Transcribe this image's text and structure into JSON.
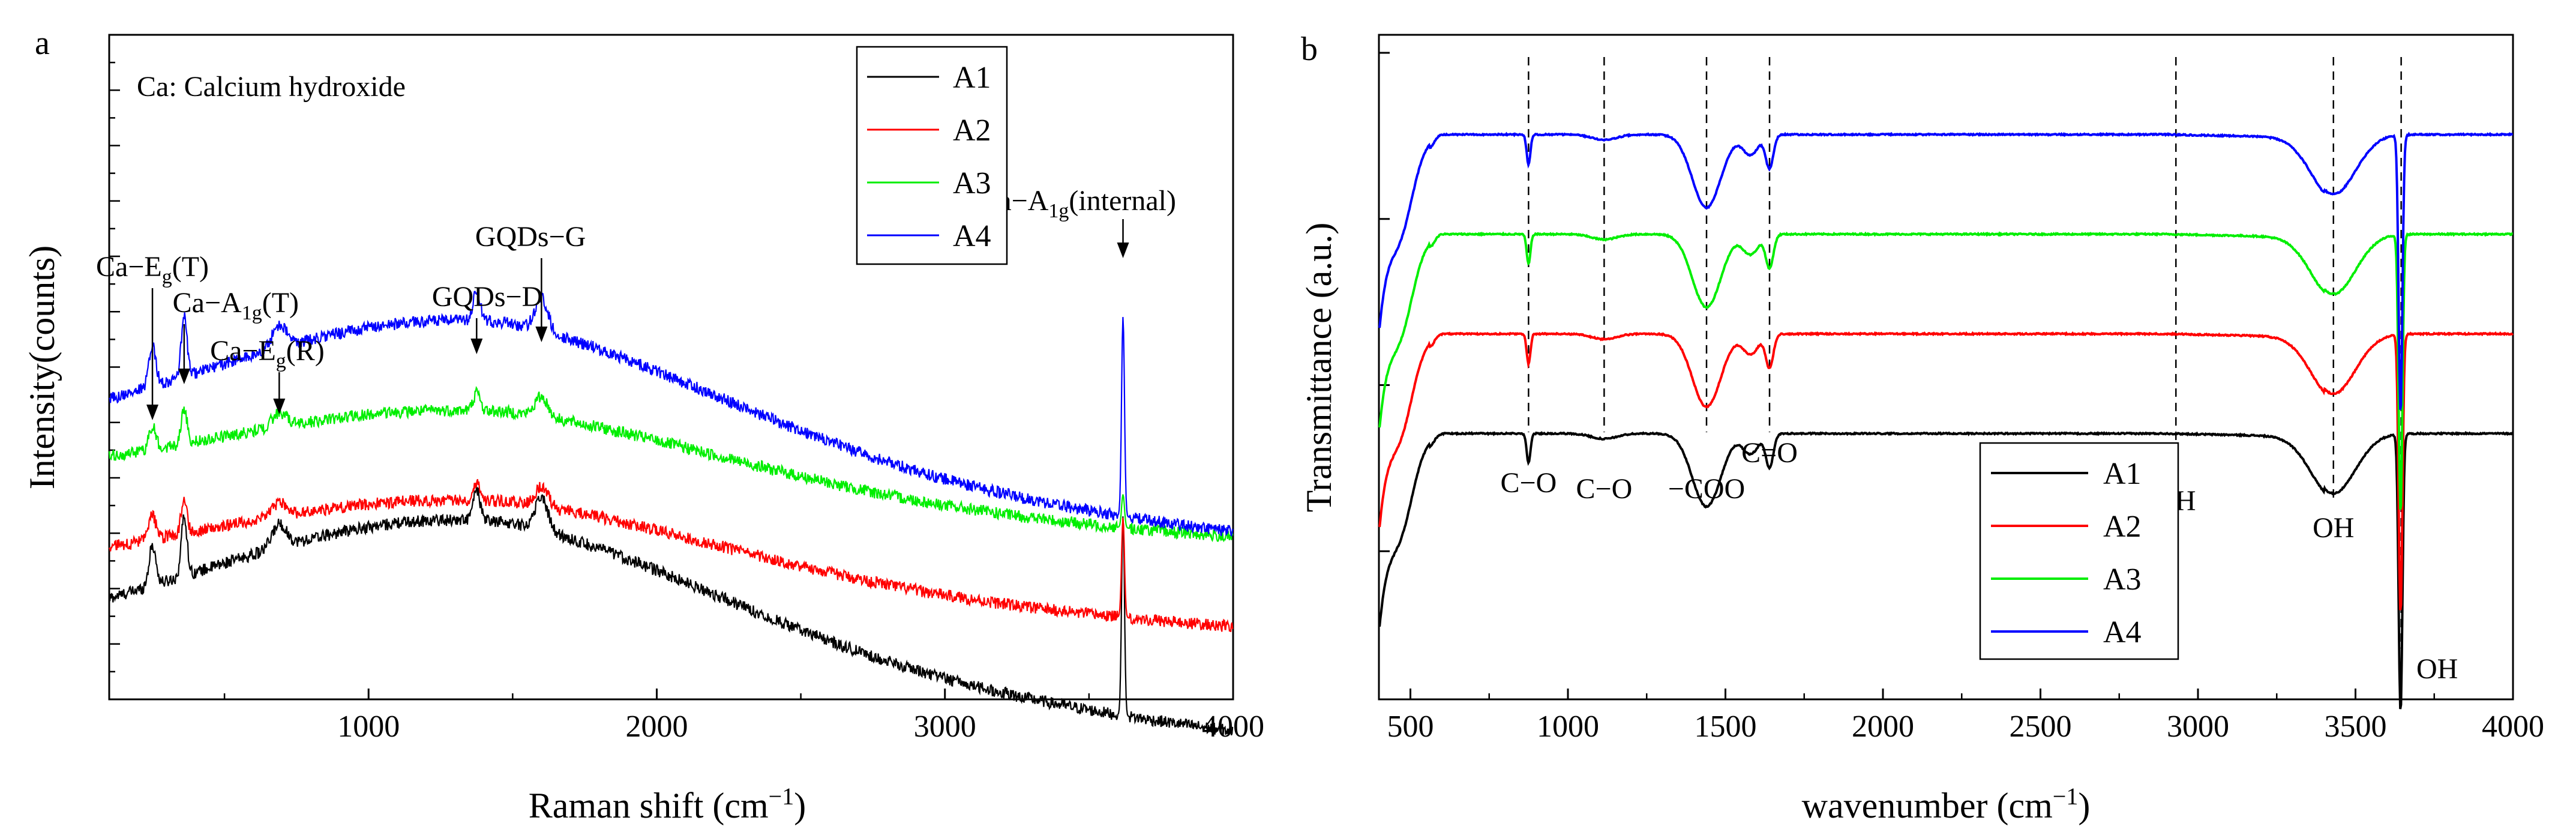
{
  "chart_data": [
    {
      "panel": "a",
      "type": "line",
      "annotation_title": "Ca: Calcium hydroxide",
      "xlabel": "Raman shift (cm−1)",
      "ylabel": "Intensity(counts)",
      "xlim": [
        100,
        4000
      ],
      "xticks": [
        "1000",
        "2000",
        "3000",
        "4000"
      ],
      "ylim": [
        0,
        1
      ],
      "grid": false,
      "legend_position": "top-right",
      "series": [
        {
          "name": "A1",
          "color": "#000000",
          "offset": 0.0,
          "amp": 1.0,
          "peak_3618": 0.3
        },
        {
          "name": "A2",
          "color": "#ff0000",
          "offset": 0.13,
          "amp": 0.6,
          "peak_3618": 0.15
        },
        {
          "name": "A3",
          "color": "#00ee00",
          "offset": 0.265,
          "amp": 0.6,
          "peak_3618": 0.05
        },
        {
          "name": "A4",
          "color": "#0000ff",
          "offset": 0.3,
          "amp": 1.0,
          "peak_3618": 0.3
        }
      ],
      "annotations": [
        {
          "label": "Ca−E",
          "sub": "g",
          "tail": "(T)",
          "x": 250
        },
        {
          "label": "Ca−A",
          "sub": "1g",
          "tail": "(T)",
          "x": 360
        },
        {
          "label": "Ca−E",
          "sub": "g",
          "tail": "(R)",
          "x": 690
        },
        {
          "label": "GQDs−D",
          "sub": "",
          "tail": "",
          "x": 1375
        },
        {
          "label": "GQDs−G",
          "sub": "",
          "tail": "",
          "x": 1600
        },
        {
          "label": "Ca−A",
          "sub": "1g",
          "tail": "(internal)",
          "x": 3618
        }
      ]
    },
    {
      "panel": "b",
      "type": "line",
      "xlabel": "wavenumber (cm−1)",
      "ylabel": "Transmittance (a.u.)",
      "xlim": [
        400,
        4000
      ],
      "xticks": [
        "500",
        "1000",
        "1500",
        "2000",
        "2500",
        "3000",
        "3500",
        "4000"
      ],
      "ylim": [
        0,
        1
      ],
      "grid": false,
      "legend_position": "bottom-right",
      "series": [
        {
          "name": "A1",
          "color": "#000000",
          "offset": 0.0
        },
        {
          "name": "A2",
          "color": "#ff0000",
          "offset": 0.15
        },
        {
          "name": "A3",
          "color": "#00ee00",
          "offset": 0.3
        },
        {
          "name": "A4",
          "color": "#0000ff",
          "offset": 0.45
        }
      ],
      "band_markers": [
        {
          "label": "C−O",
          "x": 875
        },
        {
          "label": "C−O",
          "x": 1115
        },
        {
          "label": "−COO",
          "x": 1440
        },
        {
          "label": "C=O",
          "x": 1640
        },
        {
          "label": "CH",
          "x": 2930
        },
        {
          "label": "OH",
          "x": 3430
        },
        {
          "label": "OH",
          "x": 3645
        }
      ]
    }
  ]
}
